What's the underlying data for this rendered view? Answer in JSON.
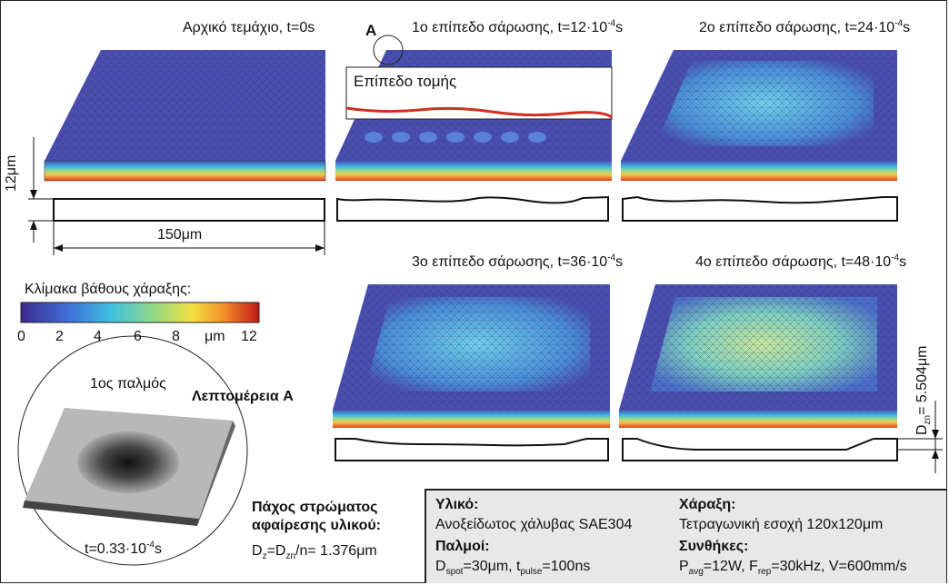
{
  "panels": {
    "p0": "Αρχικό τεμάχιο, t=0s",
    "p1_pre": "1ο επίπεδο σάρωσης, t=12·10",
    "p1_exp": "-4",
    "p1_unit": "s",
    "p2_pre": "2ο επίπεδο σάρωσης, t=24·10",
    "p2_exp": "-4",
    "p2_unit": "s",
    "p3_pre": "3ο επίπεδο σάρωσης, t=36·10",
    "p3_exp": "-4",
    "p3_unit": "s",
    "p4_pre": "4ο επίπεδο σάρωσης, t=48·10",
    "p4_exp": "-4",
    "p4_unit": "s"
  },
  "labels": {
    "detail_marker": "A",
    "section_plane": "Επίπεδο τομής",
    "thickness": "12μm",
    "width": "150μm",
    "depth_scale_title": "Κλίμακα βάθους χάραξης:",
    "scale_ticks": [
      "0",
      "2",
      "4",
      "6",
      "8",
      "μm",
      "12"
    ],
    "pulse": "1ος παλμός",
    "detail": "Λεπτομέρεια A",
    "pulse_time_pre": "t=0.33·10",
    "pulse_time_exp": "-4",
    "pulse_time_unit": "s",
    "dzn_pre": "D",
    "dzn_sub": "zn",
    "dzn_post": "= 5.504μm"
  },
  "layer": {
    "title_line1": "Πάχος στρώματος",
    "title_line2": "αφαίρεσης υλικού:",
    "formula_a": "D",
    "formula_sub1": "z",
    "formula_b": "=D",
    "formula_sub2": "zn",
    "formula_c": "/n= 1.376μm"
  },
  "info": {
    "material_label": "Υλικό:",
    "material_value": "Ανοξείδωτος χάλυβας SAE304",
    "pulses_label": "Παλμοί:",
    "pulses_a": "D",
    "pulses_sub1": "spot",
    "pulses_b": "=30μm, t",
    "pulses_sub2": "pulse",
    "pulses_c": "=100ns",
    "engraving_label": "Χάραξη:",
    "engraving_value": "Τετραγωνική εσοχή 120x120μm",
    "conditions_label": "Συνθήκες:",
    "cond_a": "P",
    "cond_sub1": "avg",
    "cond_b": "=12W, F",
    "cond_sub2": "rep",
    "cond_c": "=30kHz, V=600mm/s"
  },
  "colors": {
    "top": "#4a4fb0",
    "stripe": [
      "#4a4fb0",
      "#3bb8e8",
      "#9bd88a",
      "#f2c84a",
      "#e23a20"
    ]
  }
}
